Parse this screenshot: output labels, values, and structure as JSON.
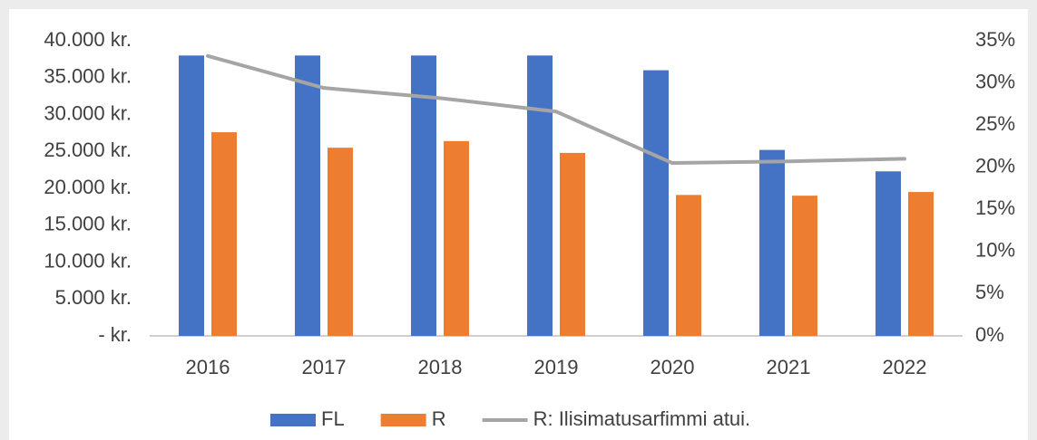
{
  "chart_data": {
    "type": "bar",
    "categories": [
      "2016",
      "2017",
      "2018",
      "2019",
      "2020",
      "2021",
      "2022"
    ],
    "series": [
      {
        "name": "FL",
        "color": "#4472c4",
        "values": [
          38000,
          38000,
          38000,
          38000,
          36000,
          25200,
          22300
        ]
      },
      {
        "name": "R",
        "color": "#ed7d31",
        "values": [
          27600,
          25500,
          26400,
          24800,
          19100,
          19000,
          19500
        ]
      },
      {
        "name": "R: Ilisimatusarfimmi atui.",
        "color": "#a5a5a5",
        "type": "line",
        "axis": "y2",
        "values": [
          33.2,
          29.4,
          28.2,
          26.6,
          20.5,
          20.7,
          21.0
        ]
      }
    ],
    "ylim": [
      0,
      40000
    ],
    "yticks": [
      {
        "value": 0,
        "label": "-   kr."
      },
      {
        "value": 5000,
        "label": "5.000 kr."
      },
      {
        "value": 10000,
        "label": "10.000 kr."
      },
      {
        "value": 15000,
        "label": "15.000 kr."
      },
      {
        "value": 20000,
        "label": "20.000 kr."
      },
      {
        "value": 25000,
        "label": "25.000 kr."
      },
      {
        "value": 30000,
        "label": "30.000 kr."
      },
      {
        "value": 35000,
        "label": "35.000 kr."
      },
      {
        "value": 40000,
        "label": "40.000 kr."
      }
    ],
    "y2lim": [
      0,
      35
    ],
    "y2ticks": [
      {
        "value": 0,
        "label": "0%"
      },
      {
        "value": 5,
        "label": "5%"
      },
      {
        "value": 10,
        "label": "10%"
      },
      {
        "value": 15,
        "label": "15%"
      },
      {
        "value": 20,
        "label": "20%"
      },
      {
        "value": 25,
        "label": "25%"
      },
      {
        "value": 30,
        "label": "30%"
      },
      {
        "value": 35,
        "label": "35%"
      }
    ],
    "grid": false,
    "legend": "bottom"
  }
}
